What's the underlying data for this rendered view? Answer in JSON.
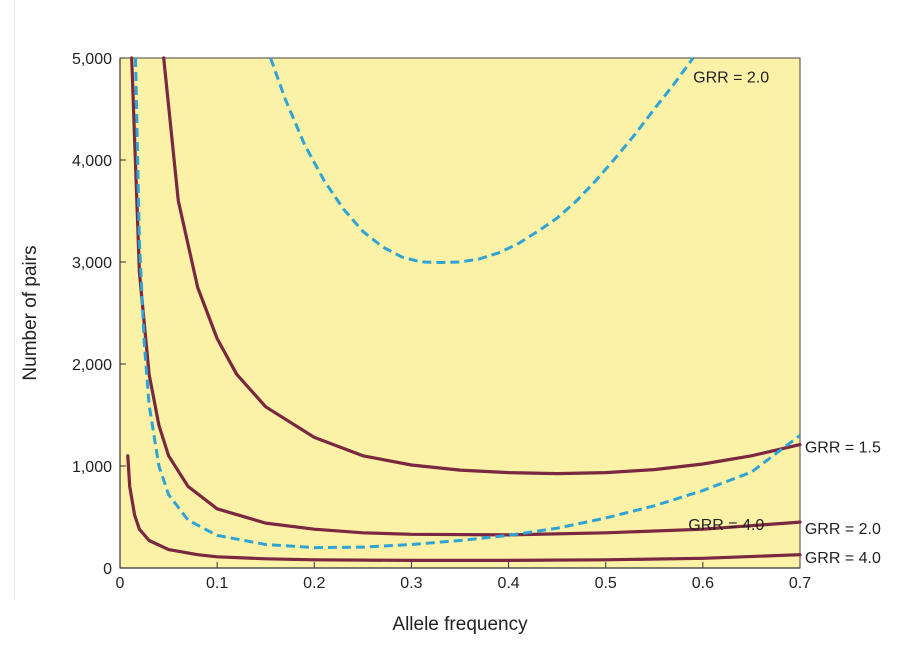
{
  "chart_data": {
    "type": "line",
    "title": "",
    "xlabel": "Allele frequency",
    "ylabel": "Number of pairs",
    "xlim": [
      0,
      0.7
    ],
    "ylim": [
      0,
      5000
    ],
    "x_ticks": [
      0,
      0.1,
      0.2,
      0.3,
      0.4,
      0.5,
      0.6,
      0.7
    ],
    "x_tick_labels": [
      "0",
      "0.1",
      "0.2",
      "0.3",
      "0.4",
      "0.5",
      "0.6",
      "0.7"
    ],
    "y_ticks": [
      0,
      1000,
      2000,
      3000,
      4000,
      5000
    ],
    "y_tick_labels": [
      "0",
      "1,000",
      "2,000",
      "3,000",
      "4,000",
      "5,000"
    ],
    "grid": false,
    "background_color": "#fbf2a8",
    "series": [
      {
        "name": "GRR = 1.5",
        "style": "solid",
        "color": "#7a2740",
        "x": [
          0.045,
          0.06,
          0.08,
          0.1,
          0.12,
          0.15,
          0.2,
          0.25,
          0.3,
          0.35,
          0.4,
          0.45,
          0.5,
          0.55,
          0.6,
          0.65,
          0.7
        ],
        "y": [
          5000,
          3600,
          2750,
          2250,
          1900,
          1580,
          1280,
          1100,
          1010,
          960,
          935,
          925,
          935,
          965,
          1020,
          1100,
          1210
        ]
      },
      {
        "name": "GRR = 2.0",
        "style": "solid",
        "color": "#7a2740",
        "x": [
          0.012,
          0.02,
          0.03,
          0.04,
          0.05,
          0.07,
          0.1,
          0.15,
          0.2,
          0.25,
          0.3,
          0.4,
          0.5,
          0.6,
          0.7
        ],
        "y": [
          5000,
          2900,
          1900,
          1400,
          1100,
          800,
          580,
          440,
          380,
          345,
          330,
          325,
          345,
          380,
          450
        ]
      },
      {
        "name": "GRR = 4.0",
        "style": "solid",
        "color": "#7a2740",
        "x": [
          0.008,
          0.01,
          0.015,
          0.02,
          0.03,
          0.05,
          0.08,
          0.1,
          0.15,
          0.2,
          0.3,
          0.4,
          0.5,
          0.6,
          0.7
        ],
        "y": [
          1100,
          800,
          520,
          380,
          270,
          180,
          130,
          110,
          90,
          80,
          75,
          75,
          80,
          95,
          130
        ]
      },
      {
        "name": "GRR = 2.0",
        "style": "dashed",
        "color": "#2fa4d4",
        "x": [
          0.155,
          0.17,
          0.19,
          0.21,
          0.23,
          0.25,
          0.27,
          0.29,
          0.31,
          0.33,
          0.35,
          0.37,
          0.39,
          0.41,
          0.43,
          0.45,
          0.47,
          0.49,
          0.51,
          0.53,
          0.55,
          0.57,
          0.59
        ],
        "y": [
          5000,
          4600,
          4150,
          3800,
          3520,
          3300,
          3150,
          3050,
          3000,
          2995,
          3000,
          3030,
          3090,
          3180,
          3300,
          3430,
          3600,
          3800,
          4020,
          4250,
          4500,
          4740,
          5000
        ]
      },
      {
        "name": "GRR = 4.0",
        "style": "dashed",
        "color": "#2fa4d4",
        "x": [
          0.016,
          0.02,
          0.025,
          0.03,
          0.04,
          0.05,
          0.07,
          0.1,
          0.15,
          0.2,
          0.25,
          0.3,
          0.35,
          0.4,
          0.45,
          0.5,
          0.55,
          0.6,
          0.65,
          0.7
        ],
        "y": [
          5000,
          3200,
          2200,
          1600,
          1000,
          720,
          470,
          320,
          230,
          200,
          205,
          230,
          270,
          320,
          390,
          490,
          610,
          760,
          940,
          1300
        ]
      }
    ],
    "annotations": [
      {
        "text": "GRR = 2.0",
        "x": 0.59,
        "y": 4820
      },
      {
        "text": "GRR = 1.5",
        "x": 0.705,
        "y": 1190
      },
      {
        "text": "GRR = 4.0",
        "x": 0.585,
        "y": 430
      },
      {
        "text": "GRR = 2.0",
        "x": 0.705,
        "y": 390
      },
      {
        "text": "GRR = 4.0",
        "x": 0.705,
        "y": 110
      }
    ]
  }
}
